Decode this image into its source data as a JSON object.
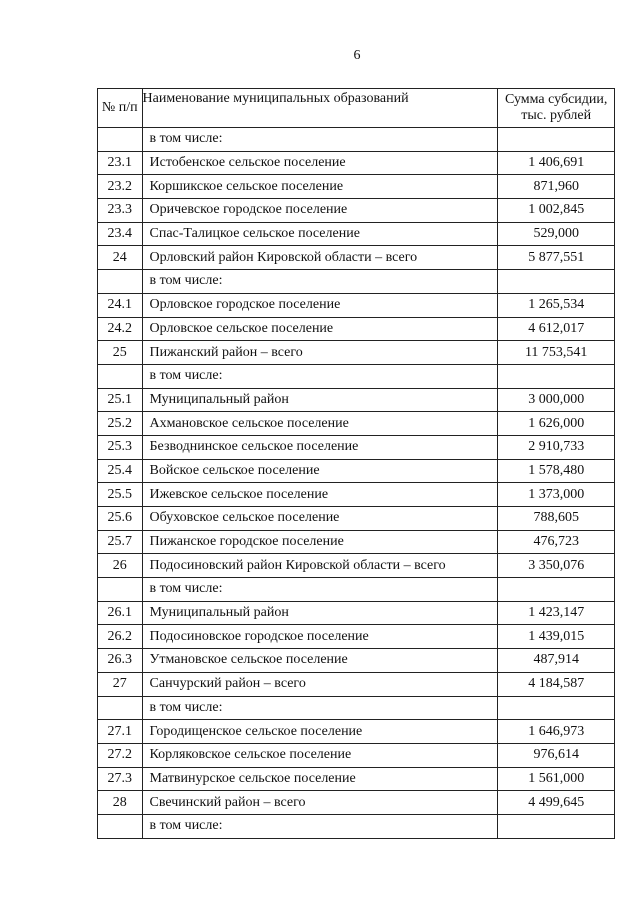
{
  "page_number": "6",
  "table": {
    "headers": {
      "num": "№ п/п",
      "name": "Наименование муниципальных образований",
      "sum": "Сумма субсидии, тыс. рублей"
    },
    "rows": [
      {
        "num": "",
        "name": "в том числе:",
        "sum": ""
      },
      {
        "num": "23.1",
        "name": "Истобенское сельское поселение",
        "sum": "1 406,691"
      },
      {
        "num": "23.2",
        "name": "Коршикское сельское поселение",
        "sum": "871,960"
      },
      {
        "num": "23.3",
        "name": "Оричевское городское поселение",
        "sum": "1 002,845"
      },
      {
        "num": "23.4",
        "name": "Спас-Талицкое сельское поселение",
        "sum": "529,000"
      },
      {
        "num": "24",
        "name": "Орловский район Кировской области – всего",
        "sum": "5 877,551"
      },
      {
        "num": "",
        "name": "в том числе:",
        "sum": ""
      },
      {
        "num": "24.1",
        "name": "Орловское городское поселение",
        "sum": "1 265,534"
      },
      {
        "num": "24.2",
        "name": "Орловское сельское поселение",
        "sum": "4 612,017"
      },
      {
        "num": "25",
        "name": "Пижанский район – всего",
        "sum": "11 753,541"
      },
      {
        "num": "",
        "name": "в том числе:",
        "sum": ""
      },
      {
        "num": "25.1",
        "name": "Муниципальный район",
        "sum": "3 000,000"
      },
      {
        "num": "25.2",
        "name": "Ахмановское сельское поселение",
        "sum": "1 626,000"
      },
      {
        "num": "25.3",
        "name": "Безводнинское сельское поселение",
        "sum": "2 910,733"
      },
      {
        "num": "25.4",
        "name": "Войское сельское поселение",
        "sum": "1 578,480"
      },
      {
        "num": "25.5",
        "name": "Ижевское сельское поселение",
        "sum": "1 373,000"
      },
      {
        "num": "25.6",
        "name": "Обуховское сельское поселение",
        "sum": "788,605"
      },
      {
        "num": "25.7",
        "name": "Пижанское городское поселение",
        "sum": "476,723"
      },
      {
        "num": "26",
        "name": "Подосиновский район Кировской области – всего",
        "sum": "3 350,076"
      },
      {
        "num": "",
        "name": "в том числе:",
        "sum": ""
      },
      {
        "num": "26.1",
        "name": "Муниципальный район",
        "sum": "1 423,147"
      },
      {
        "num": "26.2",
        "name": "Подосиновское городское поселение",
        "sum": "1 439,015"
      },
      {
        "num": "26.3",
        "name": "Утмановское сельское поселение",
        "sum": "487,914"
      },
      {
        "num": "27",
        "name": "Санчурский район – всего",
        "sum": "4 184,587"
      },
      {
        "num": "",
        "name": "в том числе:",
        "sum": ""
      },
      {
        "num": "27.1",
        "name": "Городищенское сельское поселение",
        "sum": "1 646,973"
      },
      {
        "num": "27.2",
        "name": "Корляковское сельское поселение",
        "sum": "976,614"
      },
      {
        "num": "27.3",
        "name": "Матвинурское сельское поселение",
        "sum": "1 561,000"
      },
      {
        "num": "28",
        "name": "Свечинский район – всего",
        "sum": "4 499,645"
      },
      {
        "num": "",
        "name": "в том числе:",
        "sum": ""
      }
    ]
  }
}
